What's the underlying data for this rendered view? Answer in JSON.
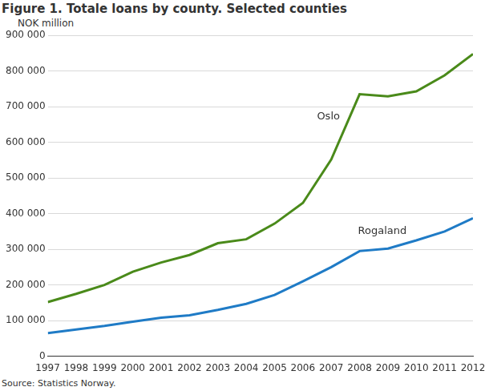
{
  "chart_data": {
    "type": "line",
    "title": "Figure 1. Totale loans by county. Selected counties",
    "y_label": "NOK million",
    "source": "Source: Statistics Norway.",
    "x": [
      1997,
      1998,
      1999,
      2000,
      2001,
      2002,
      2003,
      2004,
      2005,
      2006,
      2007,
      2008,
      2009,
      2010,
      2011,
      2012
    ],
    "series": [
      {
        "name": "Oslo",
        "color": "#4a8a1a",
        "values": [
          152000,
          175000,
          200000,
          237000,
          263000,
          284000,
          317000,
          328000,
          372000,
          430000,
          552000,
          735000,
          729000,
          743000,
          788000,
          848000
        ]
      },
      {
        "name": "Rogaland",
        "color": "#1f7bc6",
        "values": [
          65000,
          75000,
          85000,
          97000,
          108000,
          115000,
          130000,
          147000,
          172000,
          210000,
          250000,
          295000,
          302000,
          325000,
          350000,
          387000
        ]
      }
    ],
    "annotations": [
      {
        "text": "Oslo",
        "x": 2006.9,
        "y": 672000
      },
      {
        "text": "Rogaland",
        "x": 2008.8,
        "y": 350000
      }
    ],
    "xlim": [
      1997,
      2012
    ],
    "xticks": [
      1997,
      1998,
      1999,
      2000,
      2001,
      2002,
      2003,
      2004,
      2005,
      2006,
      2007,
      2008,
      2009,
      2010,
      2011,
      2012
    ],
    "ylim": [
      0,
      900000
    ],
    "yticks": [
      0,
      {
        "value": 100000,
        "label": "100 000"
      },
      {
        "value": 200000,
        "label": "200 000"
      },
      {
        "value": 300000,
        "label": "300 000"
      },
      {
        "value": 400000,
        "label": "400 000"
      },
      {
        "value": 500000,
        "label": "500 000"
      },
      {
        "value": 600000,
        "label": "600 000"
      },
      {
        "value": 700000,
        "label": "700 000"
      },
      {
        "value": 800000,
        "label": "800 000"
      },
      {
        "value": 900000,
        "label": "900 000"
      }
    ],
    "grid": true
  }
}
